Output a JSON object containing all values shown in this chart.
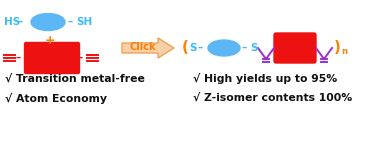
{
  "bg_color": "#ffffff",
  "blue_ellipse_color": "#5BB8F5",
  "red_rect_color": "#EE1111",
  "orange_color": "#F5820A",
  "purple_color": "#9B30D0",
  "cyan_text_color": "#3DBAFC",
  "text_color": "#111111",
  "arrow_fill": "#FAD0A8",
  "arrow_edge": "#F5A050",
  "label1": "√ Transition metal-free",
  "label2": "√ Atom Economy",
  "label3": "√ High yields up to 95%",
  "label4": "√ Z-isomer contents 100%"
}
